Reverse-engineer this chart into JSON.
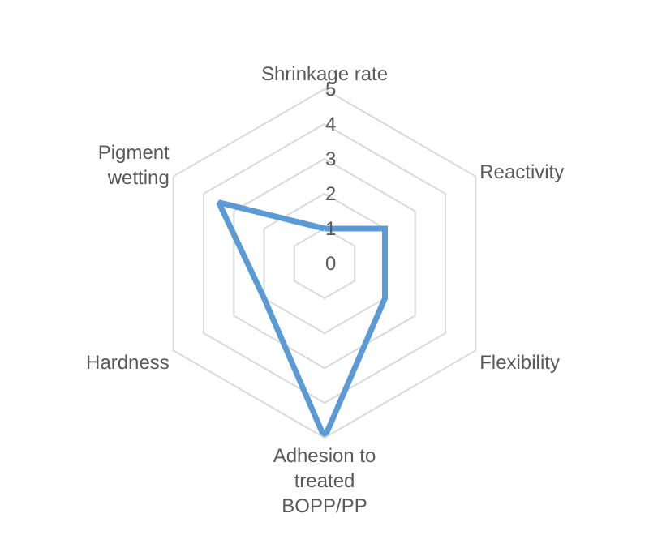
{
  "chart_data": {
    "type": "radar",
    "categories": [
      "Shrinkage rate",
      "Reactivity",
      "Flexibility",
      "Adhesion to treated BOPP/PP",
      "Hardness",
      "Pigment wetting"
    ],
    "series": [
      {
        "color": "#5b9bd5",
        "values": [
          1,
          2,
          2,
          5,
          2,
          3.5
        ]
      }
    ],
    "ylim": [
      0,
      5
    ],
    "yticks": [
      0,
      1,
      2,
      3,
      4,
      5
    ],
    "grid": true,
    "marker": "none",
    "line_style": "solid"
  }
}
